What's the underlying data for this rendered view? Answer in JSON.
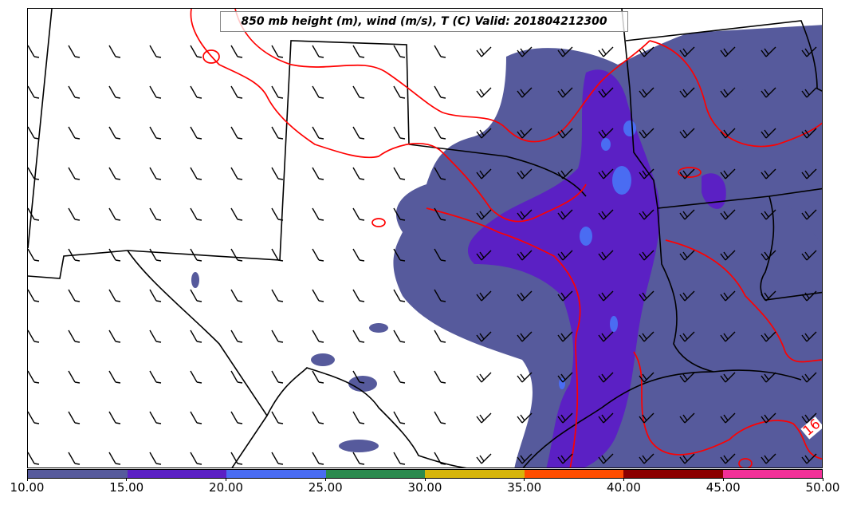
{
  "title": "850 mb height (m), wind (m/s), T (C) Valid: 201804212300",
  "contour_label": "16",
  "colorbar": {
    "labels": [
      "10.00",
      "15.00",
      "20.00",
      "25.00",
      "30.00",
      "35.00",
      "40.00",
      "45.00",
      "50.00"
    ],
    "colors": [
      "#565a9c",
      "#5b20c4",
      "#4a6cf2",
      "#2b8a4e",
      "#d7b50a",
      "#ff4d00",
      "#8b0000",
      "#f23098"
    ]
  },
  "map_colors": {
    "shade_low": "#565a9c",
    "shade_mid": "#5b20c4",
    "shade_high": "#4a6cf2",
    "isotherm": "#ff0000",
    "borders": "#000000"
  }
}
